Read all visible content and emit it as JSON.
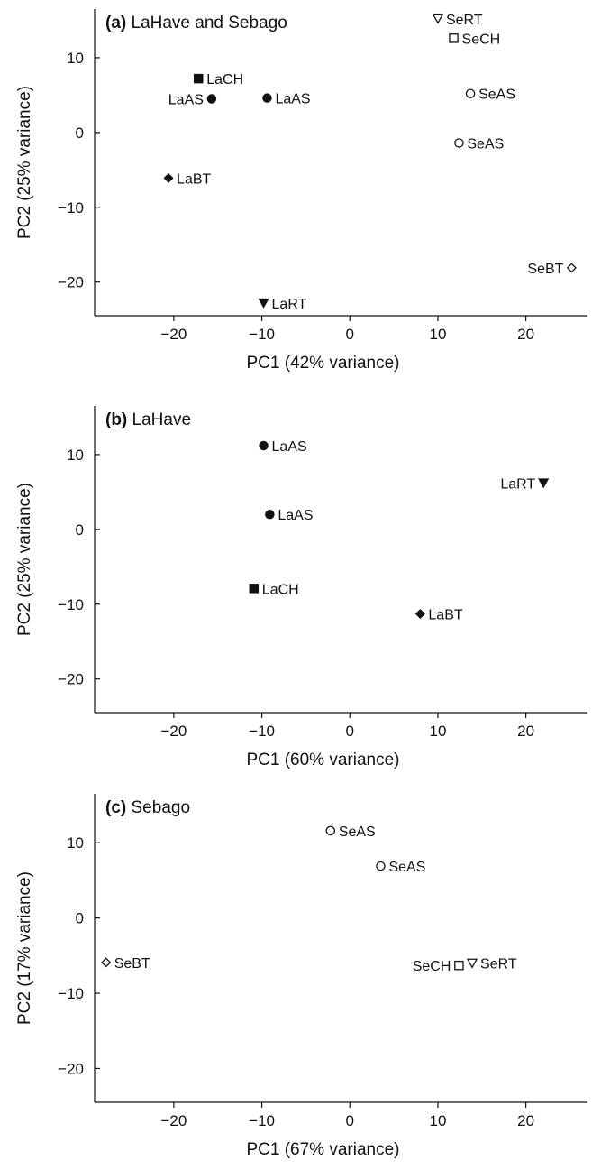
{
  "chart_data": [
    {
      "type": "scatter",
      "panel_tag": "(a)",
      "title": "LaHave and Sebago",
      "xlabel": "PC1 (42% variance)",
      "ylabel": "PC2 (25% variance)",
      "xlim": [
        -29,
        27
      ],
      "ylim": [
        -24.5,
        16.5
      ],
      "xticks": [
        -20,
        -10,
        0,
        10,
        20
      ],
      "yticks": [
        -20,
        -10,
        0,
        10
      ],
      "points": [
        {
          "label": "LaCH",
          "x": -17.2,
          "y": 7.2,
          "marker": "square-filled",
          "label_side": "right"
        },
        {
          "label": "LaAS",
          "x": -15.7,
          "y": 4.5,
          "marker": "circle-filled",
          "label_side": "left"
        },
        {
          "label": "LaAS",
          "x": -9.4,
          "y": 4.6,
          "marker": "circle-filled",
          "label_side": "right"
        },
        {
          "label": "LaBT",
          "x": -20.6,
          "y": -6.1,
          "marker": "diamond-filled",
          "label_side": "right"
        },
        {
          "label": "LaRT",
          "x": -9.8,
          "y": -22.8,
          "marker": "triangle-down-filled",
          "label_side": "right"
        },
        {
          "label": "SeRT",
          "x": 10.0,
          "y": 15.2,
          "marker": "triangle-down-open",
          "label_side": "right"
        },
        {
          "label": "SeCH",
          "x": 11.8,
          "y": 12.6,
          "marker": "square-open",
          "label_side": "right"
        },
        {
          "label": "SeAS",
          "x": 13.7,
          "y": 5.2,
          "marker": "circle-open",
          "label_side": "right"
        },
        {
          "label": "SeAS",
          "x": 12.4,
          "y": -1.4,
          "marker": "circle-open",
          "label_side": "right"
        },
        {
          "label": "SeBT",
          "x": 25.2,
          "y": -18.1,
          "marker": "diamond-open",
          "label_side": "left"
        }
      ]
    },
    {
      "type": "scatter",
      "panel_tag": "(b)",
      "title": "LaHave",
      "xlabel": "PC1 (60% variance)",
      "ylabel": "PC2 (25% variance)",
      "xlim": [
        -29,
        27
      ],
      "ylim": [
        -24.5,
        16.5
      ],
      "xticks": [
        -20,
        -10,
        0,
        10,
        20
      ],
      "yticks": [
        -20,
        -10,
        0,
        10
      ],
      "points": [
        {
          "label": "LaAS",
          "x": -9.8,
          "y": 11.2,
          "marker": "circle-filled",
          "label_side": "right"
        },
        {
          "label": "LaAS",
          "x": -9.1,
          "y": 2.0,
          "marker": "circle-filled",
          "label_side": "right"
        },
        {
          "label": "LaRT",
          "x": 22.0,
          "y": 6.2,
          "marker": "triangle-down-filled",
          "label_side": "left"
        },
        {
          "label": "LaCH",
          "x": -10.9,
          "y": -7.9,
          "marker": "square-filled",
          "label_side": "right"
        },
        {
          "label": "LaBT",
          "x": 8.0,
          "y": -11.3,
          "marker": "diamond-filled",
          "label_side": "right"
        }
      ]
    },
    {
      "type": "scatter",
      "panel_tag": "(c)",
      "title": "Sebago",
      "xlabel": "PC1 (67% variance)",
      "ylabel": "PC2 (17% variance)",
      "xlim": [
        -29,
        27
      ],
      "ylim": [
        -24.5,
        16.5
      ],
      "xticks": [
        -20,
        -10,
        0,
        10,
        20
      ],
      "yticks": [
        -20,
        -10,
        0,
        10
      ],
      "points": [
        {
          "label": "SeAS",
          "x": -2.2,
          "y": 11.6,
          "marker": "circle-open",
          "label_side": "right"
        },
        {
          "label": "SeAS",
          "x": 3.5,
          "y": 6.9,
          "marker": "circle-open",
          "label_side": "right"
        },
        {
          "label": "SeBT",
          "x": -27.7,
          "y": -5.9,
          "marker": "diamond-open",
          "label_side": "right"
        },
        {
          "label": "SeCH",
          "x": 12.4,
          "y": -6.3,
          "marker": "square-open",
          "label_side": "left"
        },
        {
          "label": "SeRT",
          "x": 13.9,
          "y": -6.0,
          "marker": "triangle-down-open",
          "label_side": "right"
        }
      ]
    }
  ]
}
